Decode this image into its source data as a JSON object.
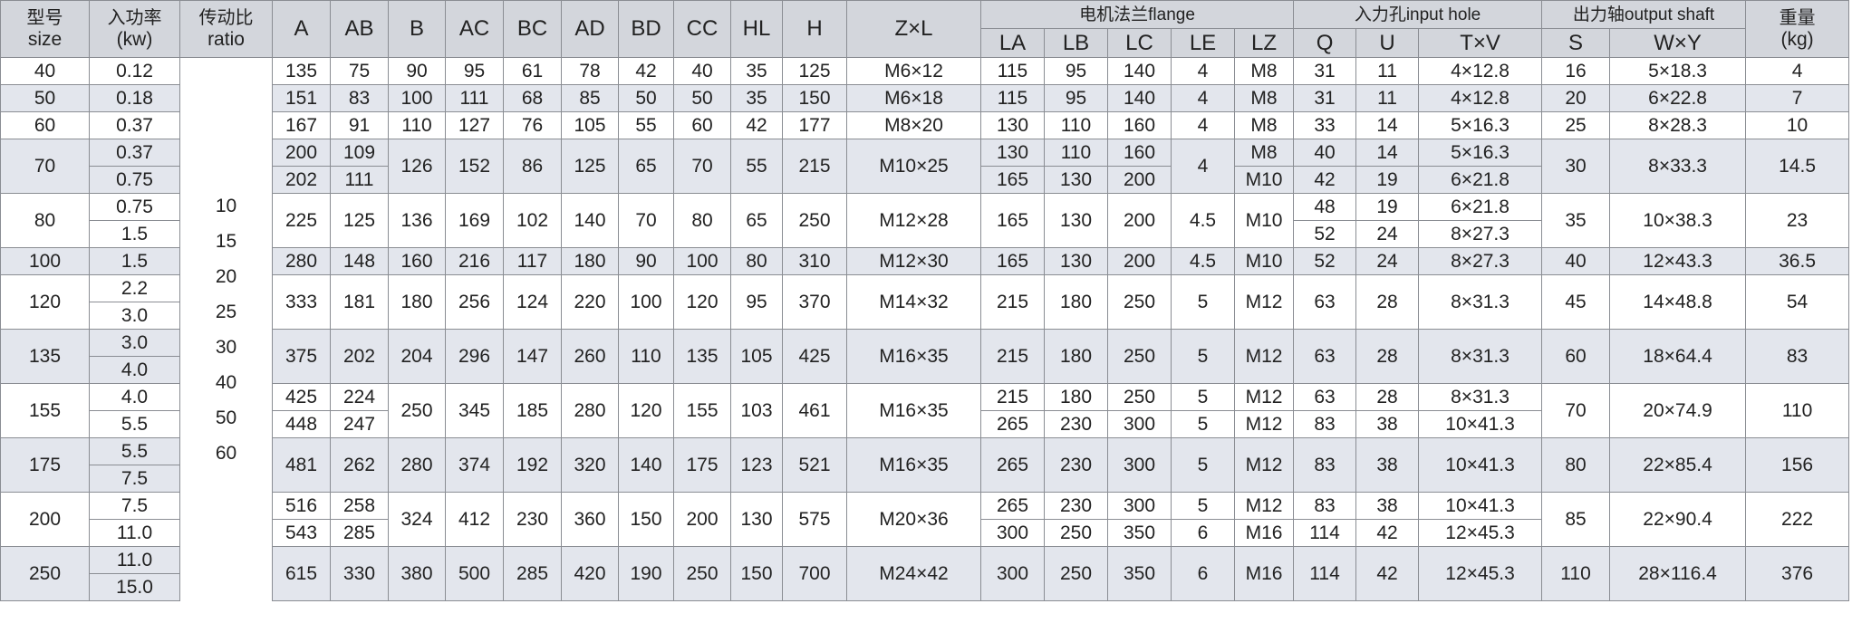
{
  "header": {
    "size": {
      "cn": "型号",
      "en": "size"
    },
    "power": {
      "cn": "入功率",
      "en": "(kw)"
    },
    "ratio": {
      "cn": "传动比",
      "en": "ratio"
    },
    "dims": [
      "A",
      "AB",
      "B",
      "AC",
      "BC",
      "AD",
      "BD",
      "CC",
      "HL",
      "H"
    ],
    "zxl": "Z×L",
    "flange": {
      "label": "电机法兰flange",
      "cols": [
        "LA",
        "LB",
        "LC",
        "LE",
        "LZ"
      ]
    },
    "input_hole": {
      "label": "入力孔input hole",
      "cols": [
        "Q",
        "U",
        "T×V"
      ]
    },
    "output_shaft": {
      "label": "出力轴output shaft",
      "cols": [
        "S",
        "W×Y"
      ]
    },
    "weight": {
      "cn": "重量",
      "en": "(kg)"
    }
  },
  "ratios": [
    "10",
    "15",
    "20",
    "25",
    "30",
    "40",
    "50",
    "60"
  ],
  "colors": {
    "header_bg": "#d3d6dc",
    "band_bg": "#e3e6ed",
    "border": "#8a8d93"
  },
  "rows": [
    {
      "size": "40",
      "power": [
        "0.12"
      ],
      "A": "135",
      "AB": "75",
      "B": "90",
      "AC": "95",
      "BC": "61",
      "AD": "78",
      "BD": "42",
      "CC": "40",
      "HL": "35",
      "H": "125",
      "ZL": "M6×12",
      "LA": "115",
      "LB": "95",
      "LC": "140",
      "LE": "4",
      "LZ": "M8",
      "Q": "31",
      "U": "11",
      "TV": "4×12.8",
      "S": "16",
      "WY": "5×18.3",
      "W": "4"
    },
    {
      "size": "50",
      "power": [
        "0.18"
      ],
      "A": "151",
      "AB": "83",
      "B": "100",
      "AC": "111",
      "BC": "68",
      "AD": "85",
      "BD": "50",
      "CC": "50",
      "HL": "35",
      "H": "150",
      "ZL": "M6×18",
      "LA": "115",
      "LB": "95",
      "LC": "140",
      "LE": "4",
      "LZ": "M8",
      "Q": "31",
      "U": "11",
      "TV": "4×12.8",
      "S": "20",
      "WY": "6×22.8",
      "W": "7"
    },
    {
      "size": "60",
      "power": [
        "0.37"
      ],
      "A": "167",
      "AB": "91",
      "B": "110",
      "AC": "127",
      "BC": "76",
      "AD": "105",
      "BD": "55",
      "CC": "60",
      "HL": "42",
      "H": "177",
      "ZL": "M8×20",
      "LA": "130",
      "LB": "110",
      "LC": "160",
      "LE": "4",
      "LZ": "M8",
      "Q": "33",
      "U": "14",
      "TV": "5×16.3",
      "S": "25",
      "WY": "8×28.3",
      "W": "10"
    },
    {
      "size": "70",
      "power": [
        "0.37",
        "0.75"
      ],
      "A": [
        "200",
        "202"
      ],
      "AB": [
        "109",
        "111"
      ],
      "B": "126",
      "AC": "152",
      "BC": "86",
      "AD": "125",
      "BD": "65",
      "CC": "70",
      "HL": "55",
      "H": "215",
      "ZL": "M10×25",
      "LA": [
        "130",
        "165"
      ],
      "LB": [
        "110",
        "130"
      ],
      "LC": [
        "160",
        "200"
      ],
      "LE": "4",
      "LZ": [
        "M8",
        "M10"
      ],
      "Q": [
        "40",
        "42"
      ],
      "U": [
        "14",
        "19"
      ],
      "TV": [
        "5×16.3",
        "6×21.8"
      ],
      "S": "30",
      "WY": "8×33.3",
      "W": "14.5"
    },
    {
      "size": "80",
      "power": [
        "0.75",
        "1.5"
      ],
      "A": "225",
      "AB": "125",
      "B": "136",
      "AC": "169",
      "BC": "102",
      "AD": "140",
      "BD": "70",
      "CC": "80",
      "HL": "65",
      "H": "250",
      "ZL": "M12×28",
      "LA": "165",
      "LB": "130",
      "LC": "200",
      "LE": "4.5",
      "LZ": "M10",
      "Q": [
        "48",
        "52"
      ],
      "U": [
        "19",
        "24"
      ],
      "TV": [
        "6×21.8",
        "8×27.3"
      ],
      "S": "35",
      "WY": "10×38.3",
      "W": "23"
    },
    {
      "size": "100",
      "power": [
        "1.5"
      ],
      "A": "280",
      "AB": "148",
      "B": "160",
      "AC": "216",
      "BC": "117",
      "AD": "180",
      "BD": "90",
      "CC": "100",
      "HL": "80",
      "H": "310",
      "ZL": "M12×30",
      "LA": "165",
      "LB": "130",
      "LC": "200",
      "LE": "4.5",
      "LZ": "M10",
      "Q": "52",
      "U": "24",
      "TV": "8×27.3",
      "S": "40",
      "WY": "12×43.3",
      "W": "36.5"
    },
    {
      "size": "120",
      "power": [
        "2.2",
        "3.0"
      ],
      "A": "333",
      "AB": "181",
      "B": "180",
      "AC": "256",
      "BC": "124",
      "AD": "220",
      "BD": "100",
      "CC": "120",
      "HL": "95",
      "H": "370",
      "ZL": "M14×32",
      "LA": "215",
      "LB": "180",
      "LC": "250",
      "LE": "5",
      "LZ": "M12",
      "Q": "63",
      "U": "28",
      "TV": "8×31.3",
      "S": "45",
      "WY": "14×48.8",
      "W": "54"
    },
    {
      "size": "135",
      "power": [
        "3.0",
        "4.0"
      ],
      "A": "375",
      "AB": "202",
      "B": "204",
      "AC": "296",
      "BC": "147",
      "AD": "260",
      "BD": "110",
      "CC": "135",
      "HL": "105",
      "H": "425",
      "ZL": "M16×35",
      "LA": "215",
      "LB": "180",
      "LC": "250",
      "LE": "5",
      "LZ": "M12",
      "Q": "63",
      "U": "28",
      "TV": "8×31.3",
      "S": "60",
      "WY": "18×64.4",
      "W": "83"
    },
    {
      "size": "155",
      "power": [
        "4.0",
        "5.5"
      ],
      "A": [
        "425",
        "448"
      ],
      "AB": [
        "224",
        "247"
      ],
      "B": "250",
      "AC": "345",
      "BC": "185",
      "AD": "280",
      "BD": "120",
      "CC": "155",
      "HL": "103",
      "H": "461",
      "ZL": "M16×35",
      "LA": [
        "215",
        "265"
      ],
      "LB": [
        "180",
        "230"
      ],
      "LC": [
        "250",
        "300"
      ],
      "LE": [
        "5",
        "5"
      ],
      "LZ": [
        "M12",
        "M12"
      ],
      "Q": [
        "63",
        "83"
      ],
      "U": [
        "28",
        "38"
      ],
      "TV": [
        "8×31.3",
        "10×41.3"
      ],
      "S": "70",
      "WY": "20×74.9",
      "W": "110"
    },
    {
      "size": "175",
      "power": [
        "5.5",
        "7.5"
      ],
      "A": "481",
      "AB": "262",
      "B": "280",
      "AC": "374",
      "BC": "192",
      "AD": "320",
      "BD": "140",
      "CC": "175",
      "HL": "123",
      "H": "521",
      "ZL": "M16×35",
      "LA": "265",
      "LB": "230",
      "LC": "300",
      "LE": "5",
      "LZ": "M12",
      "Q": "83",
      "U": "38",
      "TV": "10×41.3",
      "S": "80",
      "WY": "22×85.4",
      "W": "156"
    },
    {
      "size": "200",
      "power": [
        "7.5",
        "11.0"
      ],
      "A": [
        "516",
        "543"
      ],
      "AB": [
        "258",
        "285"
      ],
      "B": "324",
      "AC": "412",
      "BC": "230",
      "AD": "360",
      "BD": "150",
      "CC": "200",
      "HL": "130",
      "H": "575",
      "ZL": "M20×36",
      "LA": [
        "265",
        "300"
      ],
      "LB": [
        "230",
        "250"
      ],
      "LC": [
        "300",
        "350"
      ],
      "LE": [
        "5",
        "6"
      ],
      "LZ": [
        "M12",
        "M16"
      ],
      "Q": [
        "83",
        "114"
      ],
      "U": [
        "38",
        "42"
      ],
      "TV": [
        "10×41.3",
        "12×45.3"
      ],
      "S": "85",
      "WY": "22×90.4",
      "W": "222"
    },
    {
      "size": "250",
      "power": [
        "11.0",
        "15.0"
      ],
      "A": "615",
      "AB": "330",
      "B": "380",
      "AC": "500",
      "BC": "285",
      "AD": "420",
      "BD": "190",
      "CC": "250",
      "HL": "150",
      "H": "700",
      "ZL": "M24×42",
      "LA": "300",
      "LB": "250",
      "LC": "350",
      "LE": "6",
      "LZ": "M16",
      "Q": "114",
      "U": "42",
      "TV": "12×45.3",
      "S": "110",
      "WY": "28×116.4",
      "W": "376"
    }
  ]
}
